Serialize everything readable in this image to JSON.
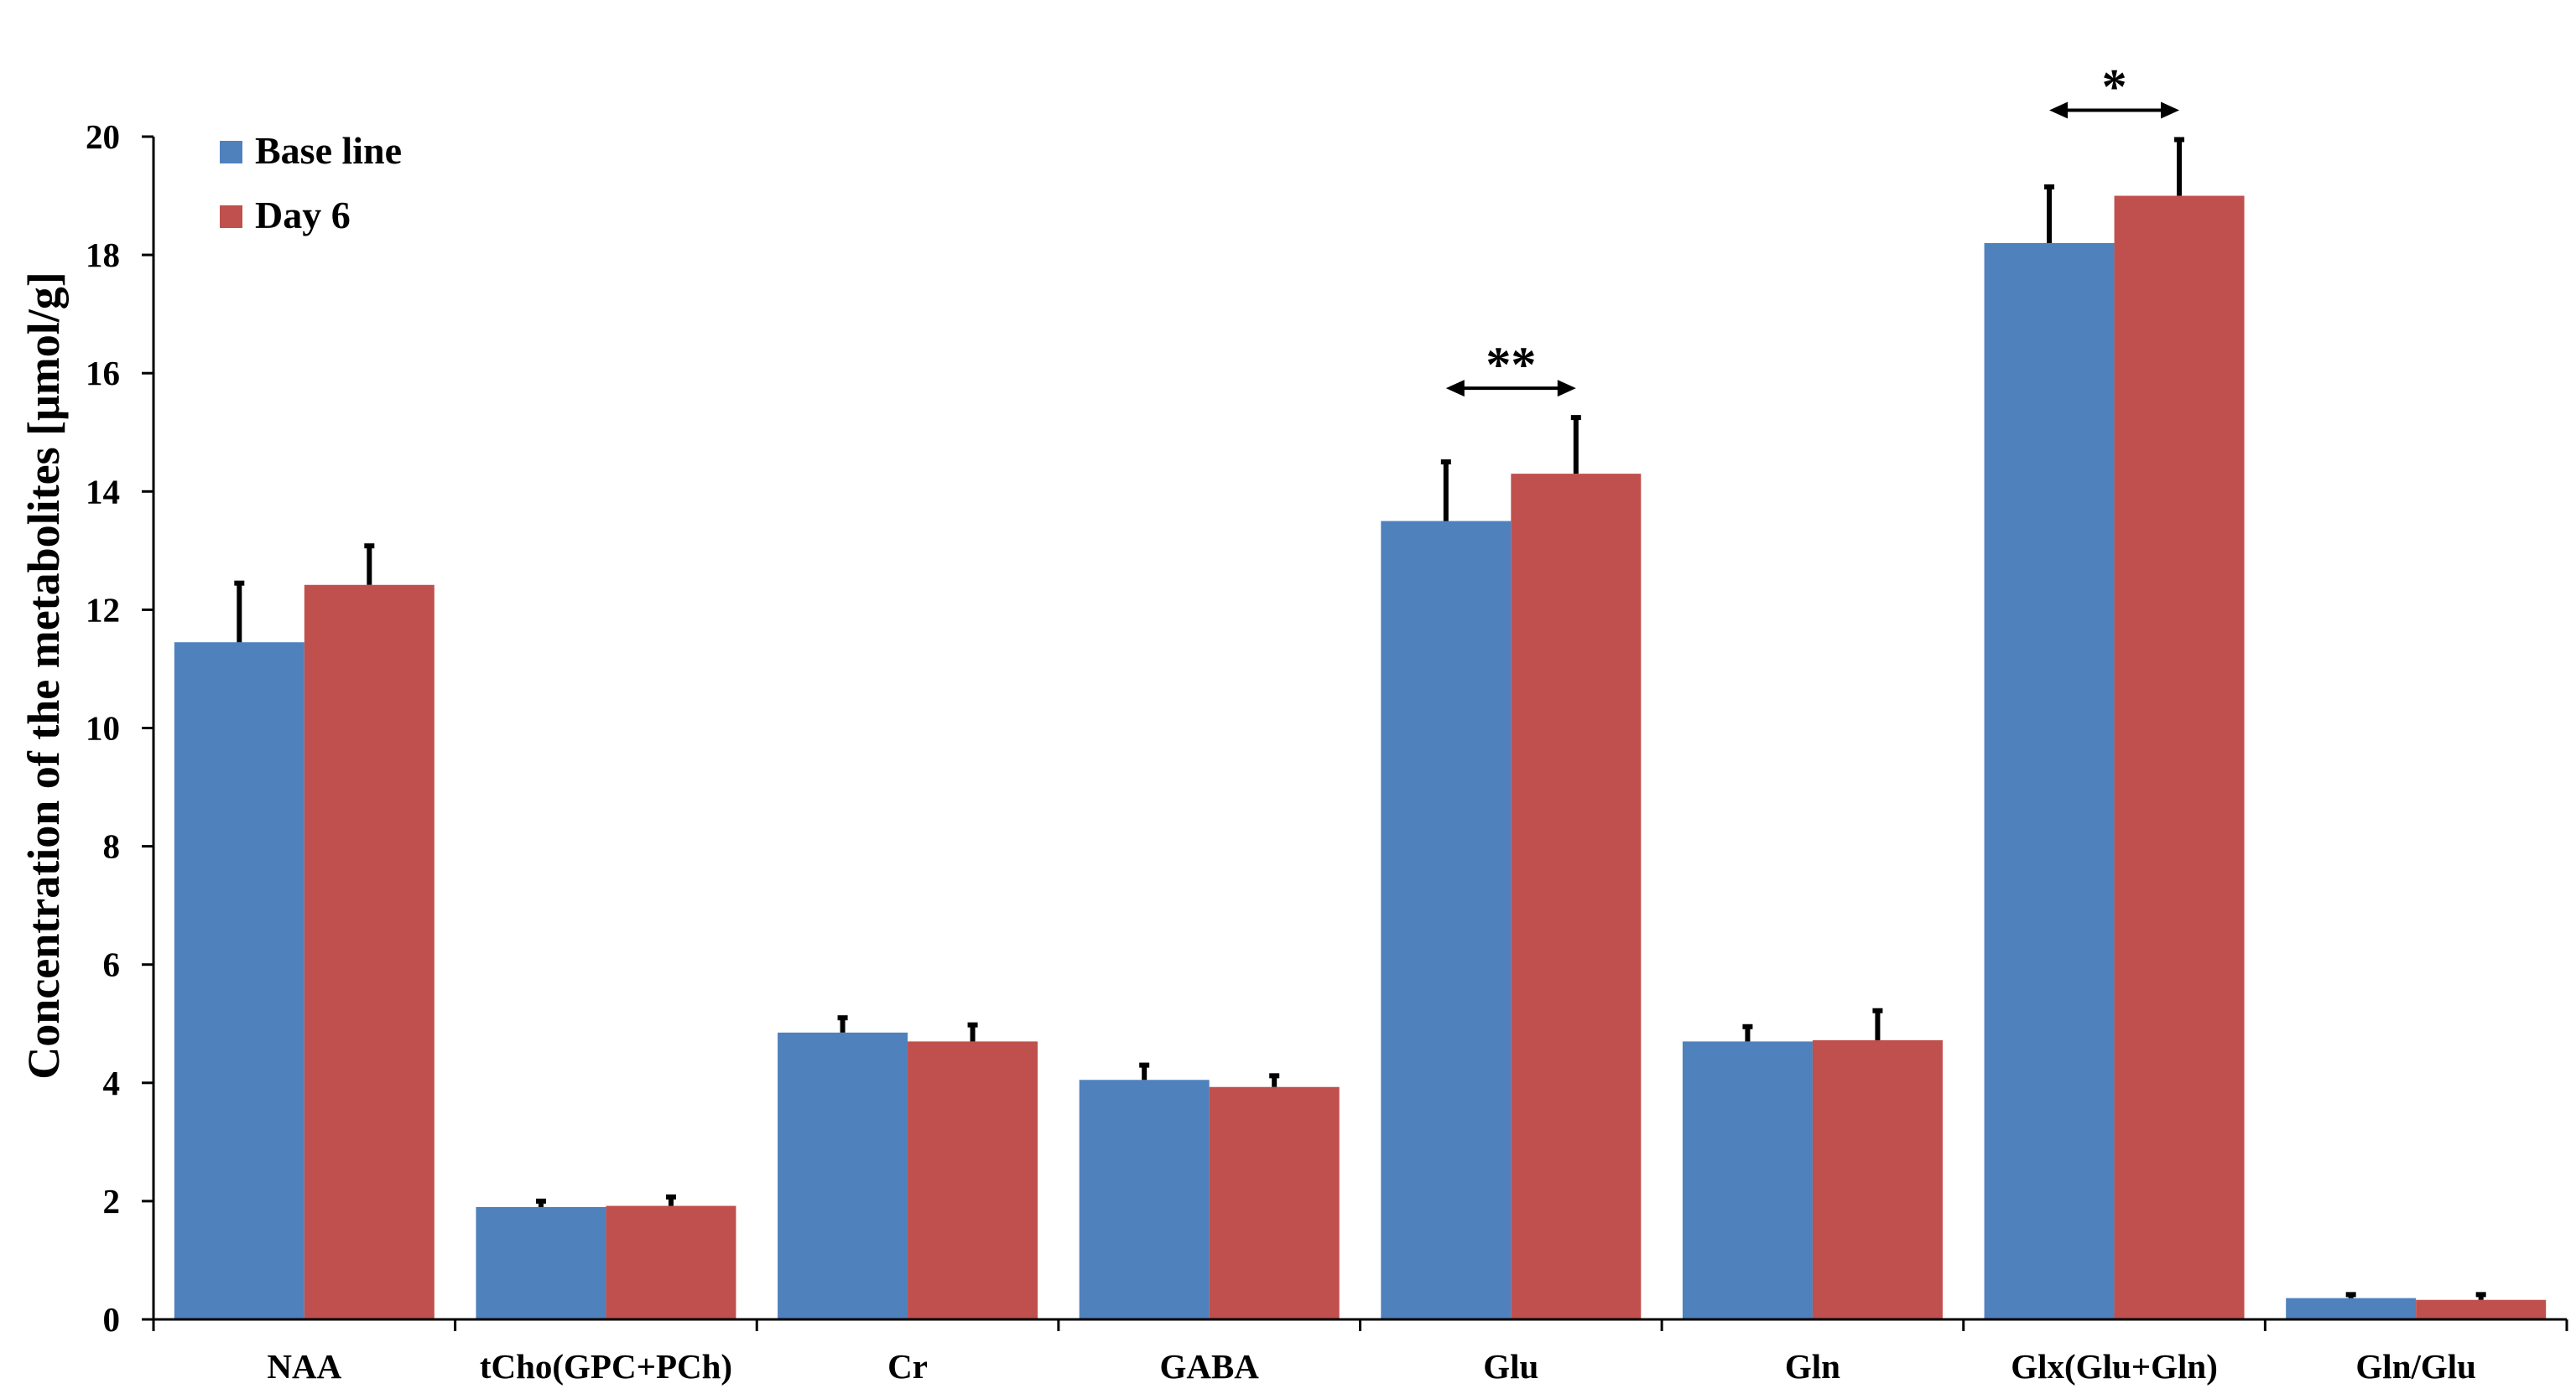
{
  "chart_data": {
    "type": "bar",
    "title": "",
    "xlabel": "",
    "ylabel": "Concentration of the metabolites [μmol/g]",
    "ylim": [
      0,
      20
    ],
    "yticks": [
      "0",
      "2",
      "4",
      "6",
      "8",
      "10",
      "12",
      "14",
      "16",
      "18",
      "20"
    ],
    "grid": false,
    "legend_position": "top-left",
    "categories": [
      "NAA",
      "tCho(GPC+PCh)",
      "Cr",
      "GABA",
      "Glu",
      "Gln",
      "Glx(Glu+Gln)",
      "Gln/Glu"
    ],
    "series": [
      {
        "name": "Base line",
        "color": "#4F81BD",
        "values": [
          11.45,
          1.9,
          4.85,
          4.05,
          13.5,
          4.7,
          18.2,
          0.36
        ],
        "error_upper": [
          12.45,
          2.0,
          5.1,
          4.3,
          14.5,
          4.95,
          19.15,
          0.42
        ]
      },
      {
        "name": "Day 6",
        "color": "#C0504D",
        "values": [
          12.42,
          1.92,
          4.7,
          3.93,
          14.3,
          4.72,
          19.0,
          0.33
        ],
        "error_upper": [
          13.08,
          2.07,
          4.98,
          4.12,
          15.25,
          5.22,
          19.95,
          0.42
        ]
      }
    ],
    "annotations": [
      {
        "category": "Glu",
        "text": "**"
      },
      {
        "category": "Glx(Glu+Gln)",
        "text": "*"
      }
    ]
  }
}
